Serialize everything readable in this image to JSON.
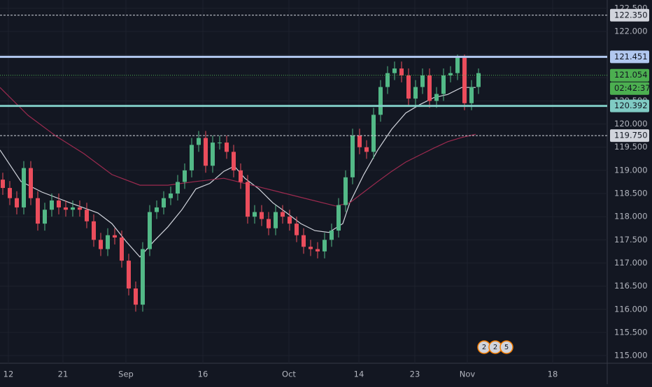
{
  "chart_data": {
    "type": "candlestick",
    "background": "#131722",
    "up_color": "#53b987",
    "down_color": "#eb4d5c",
    "grid": true,
    "xlim": [
      -0.4,
      86.4
    ],
    "xticks": [
      {
        "value": 0.8,
        "label": "12"
      },
      {
        "value": 8.6,
        "label": "21"
      },
      {
        "value": 17.6,
        "label": "Sep"
      },
      {
        "value": 28.6,
        "label": "16"
      },
      {
        "value": 40.9,
        "label": "Oct"
      },
      {
        "value": 50.9,
        "label": "14"
      },
      {
        "value": 58.9,
        "label": "23"
      },
      {
        "value": 66.4,
        "label": "Nov"
      },
      {
        "value": 78.6,
        "label": "18"
      }
    ],
    "ylim": [
      114.835,
      122.679
    ],
    "yticks": [
      {
        "value": 115,
        "label": "115.000"
      },
      {
        "value": 115.5,
        "label": "115.500"
      },
      {
        "value": 116,
        "label": "116.000"
      },
      {
        "value": 116.5,
        "label": "116.500"
      },
      {
        "value": 117,
        "label": "117.000"
      },
      {
        "value": 117.5,
        "label": "117.500"
      },
      {
        "value": 118,
        "label": "118.000"
      },
      {
        "value": 118.5,
        "label": "118.500"
      },
      {
        "value": 119,
        "label": "119.000"
      },
      {
        "value": 119.5,
        "label": "119.500"
      },
      {
        "value": 120,
        "label": "120.000"
      },
      {
        "value": 120.5,
        "label": "120.500"
      },
      {
        "value": 121,
        "label": "121.000"
      },
      {
        "value": 121.5,
        "label": "121.500"
      },
      {
        "value": 122,
        "label": "122.000"
      },
      {
        "value": 122.5,
        "label": "122.500"
      }
    ],
    "open": [
      118.8,
      118.62,
      118.4,
      118.2,
      119.05,
      118.4,
      117.85,
      118.15,
      118.35,
      118.2,
      118.15,
      118.2,
      118.15,
      117.9,
      117.5,
      117.3,
      117.6,
      117.55,
      117.05,
      116.45,
      116.1,
      117.3,
      118.1,
      118.2,
      118.4,
      118.5,
      118.75,
      119.0,
      119.55,
      119.7,
      119.1,
      119.6,
      119.6,
      119.4,
      119.0,
      118.75,
      118.0,
      118.1,
      117.95,
      117.75,
      118.1,
      118.0,
      117.85,
      117.6,
      117.35,
      117.3,
      117.25,
      117.5,
      117.7,
      118.25,
      118.85,
      119.75,
      119.5,
      119.4,
      120.2,
      120.8,
      121.1,
      121.2,
      121.05,
      120.55,
      120.8,
      121.05,
      120.5,
      120.65,
      121.05,
      121.1,
      121.45,
      120.45,
      120.8
    ],
    "high": [
      118.95,
      118.77,
      118.55,
      119.2,
      119.2,
      118.55,
      118.3,
      118.5,
      118.5,
      118.35,
      118.35,
      118.35,
      118.3,
      118.05,
      117.65,
      117.75,
      117.75,
      117.7,
      117.2,
      116.6,
      117.45,
      118.25,
      118.35,
      118.55,
      118.65,
      118.9,
      119.15,
      119.7,
      119.85,
      119.85,
      119.75,
      119.75,
      119.75,
      119.55,
      119.15,
      118.9,
      118.25,
      118.25,
      118.1,
      118.25,
      118.25,
      118.15,
      118.0,
      117.75,
      117.5,
      117.45,
      117.65,
      117.85,
      118.4,
      119.0,
      119.9,
      119.9,
      119.65,
      120.35,
      120.95,
      121.25,
      121.35,
      121.35,
      121.2,
      120.95,
      121.2,
      121.2,
      120.8,
      121.2,
      121.25,
      121.5,
      121.5,
      120.95,
      121.2
    ],
    "low": [
      118.47,
      118.25,
      118.05,
      118.05,
      118.25,
      117.7,
      117.7,
      118.0,
      118.05,
      118.0,
      118.0,
      118.0,
      117.75,
      117.35,
      117.15,
      117.15,
      117.4,
      116.9,
      116.3,
      115.95,
      115.95,
      117.15,
      117.95,
      118.05,
      118.25,
      118.35,
      118.6,
      118.85,
      119.4,
      118.95,
      118.95,
      119.45,
      119.25,
      118.85,
      118.6,
      117.85,
      117.85,
      117.8,
      117.6,
      117.6,
      117.85,
      117.7,
      117.45,
      117.2,
      117.15,
      117.1,
      117.1,
      117.35,
      117.55,
      118.1,
      118.7,
      119.35,
      119.25,
      119.25,
      120.05,
      120.65,
      120.95,
      120.9,
      120.4,
      120.4,
      120.65,
      120.35,
      120.35,
      120.5,
      120.9,
      120.95,
      120.3,
      120.3,
      120.65
    ],
    "close": [
      118.62,
      118.4,
      118.2,
      119.05,
      118.4,
      117.85,
      118.15,
      118.35,
      118.2,
      118.15,
      118.2,
      118.15,
      117.9,
      117.5,
      117.3,
      117.6,
      117.55,
      117.05,
      116.45,
      116.1,
      117.3,
      118.1,
      118.2,
      118.4,
      118.5,
      118.75,
      119.0,
      119.55,
      119.7,
      119.1,
      119.6,
      119.6,
      119.4,
      119.0,
      118.75,
      118.0,
      118.1,
      117.95,
      117.75,
      118.1,
      118.0,
      117.85,
      117.6,
      117.35,
      117.3,
      117.25,
      117.5,
      117.7,
      118.25,
      118.85,
      119.75,
      119.5,
      119.4,
      120.2,
      120.8,
      121.1,
      121.2,
      121.05,
      120.55,
      120.8,
      121.05,
      120.5,
      120.65,
      121.05,
      121.1,
      121.45,
      120.45,
      120.8,
      121.1
    ],
    "moving_averages": [
      {
        "color": "#d1d4dc",
        "x": [
          -0.4,
          2.6,
          5.6,
          9.6,
          13.6,
          15.6,
          17.6,
          19.6,
          21.6,
          23.6,
          25.6,
          27.6,
          29.6,
          31.6,
          33.1,
          34.6,
          36.6,
          38.6,
          40.6,
          42.6,
          44.6,
          46.6,
          48.6,
          49.6,
          51.6,
          53.6,
          55.6,
          57.6,
          59.6,
          61.6,
          63.6,
          65.6,
          67.6
        ],
        "values": [
          119.44,
          118.76,
          118.53,
          118.3,
          118.08,
          117.85,
          117.47,
          117.13,
          117.47,
          117.78,
          118.15,
          118.6,
          118.72,
          118.98,
          119.09,
          118.83,
          118.6,
          118.3,
          118.08,
          117.85,
          117.7,
          117.66,
          117.85,
          118.3,
          118.91,
          119.44,
          119.89,
          120.24,
          120.42,
          120.57,
          120.64,
          120.79,
          120.79
        ]
      },
      {
        "color": "#9c2a4f",
        "x": [
          -0.4,
          3.6,
          7.6,
          11.6,
          15.6,
          19.6,
          23.6,
          27.6,
          31.6,
          35.6,
          39.6,
          43.6,
          47.6,
          49.6,
          51.6,
          53.6,
          55.6,
          57.6,
          59.6,
          61.6,
          63.6,
          65.6,
          67.6
        ],
        "values": [
          120.79,
          120.19,
          119.74,
          119.36,
          118.91,
          118.68,
          118.68,
          118.76,
          118.83,
          118.68,
          118.53,
          118.38,
          118.23,
          118.3,
          118.53,
          118.76,
          118.98,
          119.18,
          119.33,
          119.48,
          119.62,
          119.71,
          119.78
        ]
      }
    ],
    "levels": [
      {
        "value": 122.35,
        "label": "122.350",
        "color": "#d1d4dc",
        "style": "dashed"
      },
      {
        "value": 121.451,
        "label": "121.451",
        "color": "#b2c8f0",
        "style": "thick"
      },
      {
        "value": 121.054,
        "label": "121.054",
        "color": "#4caf50",
        "style": "dotted"
      },
      {
        "value": 120.392,
        "label": "120.392",
        "color": "#80cbc4",
        "style": "thick"
      },
      {
        "value": 119.75,
        "label": "119.750",
        "color": "#d1d4dc",
        "style": "dashed"
      }
    ],
    "countdown": "02:42:37",
    "events": [
      "2",
      "2",
      "5"
    ]
  }
}
